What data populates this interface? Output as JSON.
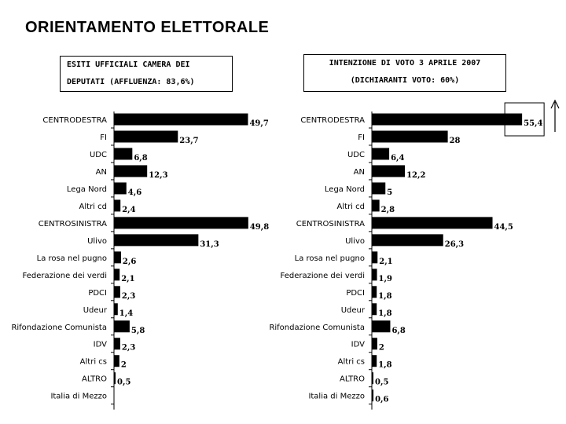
{
  "title": "ORIENTAMENTO ELETTORALE",
  "left_box": {
    "line1": "ESITI UFFICIALI CAMERA DEI",
    "line2": "DEPUTATI (AFFLUENZA: 83,6%)"
  },
  "right_box": {
    "line1": "INTENZIONE DI VOTO 3 APRILE 2007",
    "line2": "(DICHIARANTI VOTO: 60%)"
  },
  "chart_data": [
    {
      "type": "bar",
      "orientation": "horizontal",
      "categories": [
        "CENTRODESTRA",
        "FI",
        "UDC",
        "AN",
        "Lega Nord",
        "Altri cd",
        "CENTROSINISTRA",
        "Ulivo",
        "La rosa nel pugno",
        "Federazione dei verdi",
        "PDCI",
        "Udeur",
        "Rifondazione Comunista",
        "IDV",
        "Altri cs",
        "ALTRO",
        "Italia di Mezzo"
      ],
      "values": [
        49.7,
        23.7,
        6.8,
        12.3,
        4.6,
        2.4,
        49.8,
        31.3,
        2.6,
        2.1,
        2.3,
        1.4,
        5.8,
        2.3,
        2,
        0.5,
        null
      ],
      "value_labels": [
        "49,7",
        "23,7",
        "6,8",
        "12,3",
        "4,6",
        "2,4",
        "49,8",
        "31,3",
        "2,6",
        "2,1",
        "2,3",
        "1,4",
        "5,8",
        "2,3",
        "2",
        "0,5",
        ""
      ],
      "bar_color": "#000000"
    },
    {
      "type": "bar",
      "orientation": "horizontal",
      "categories": [
        "CENTRODESTRA",
        "FI",
        "UDC",
        "AN",
        "Lega Nord",
        "Altri cd",
        "CENTROSINISTRA",
        "Ulivo",
        "La rosa nel pugno",
        "Federazione dei verdi",
        "PDCI",
        "Udeur",
        "Rifondazione Comunista",
        "IDV",
        "Altri cs",
        "ALTRO",
        "Italia di Mezzo"
      ],
      "values": [
        55.4,
        28,
        6.4,
        12.2,
        5,
        2.8,
        44.5,
        26.3,
        2.1,
        1.9,
        1.8,
        1.8,
        6.8,
        2,
        1.8,
        0.5,
        0.6
      ],
      "value_labels": [
        "55,4",
        "28",
        "6,4",
        "12,2",
        "5",
        "2,8",
        "44,5",
        "26,3",
        "2,1",
        "1,9",
        "1,8",
        "1,8",
        "6,8",
        "2",
        "1,8",
        "0,5",
        "0,6"
      ],
      "bar_color": "#000000",
      "highlight": "CENTRODESTRA",
      "trend_icon": "up-arrow-icon"
    }
  ]
}
